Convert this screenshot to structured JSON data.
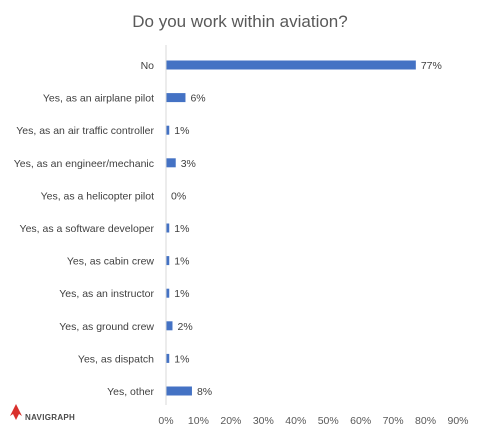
{
  "brand": {
    "name": "NAVIGRAPH",
    "accent_color": "#d9302c",
    "text_color": "#4a4a4a"
  },
  "chart_data": {
    "type": "bar",
    "orientation": "horizontal",
    "title": "Do you work within aviation?",
    "categories": [
      "No",
      "Yes, as an airplane pilot",
      "Yes, as an air traffic controller",
      "Yes, as an engineer/mechanic",
      "Yes, as a helicopter pilot",
      "Yes, as a software developer",
      "Yes, as cabin crew",
      "Yes, as an instructor",
      "Yes, as ground crew",
      "Yes, as dispatch",
      "Yes, other"
    ],
    "values": [
      77,
      6,
      1,
      3,
      0,
      1,
      1,
      1,
      2,
      1,
      8
    ],
    "value_labels": [
      "77%",
      "6%",
      "1%",
      "3%",
      "0%",
      "1%",
      "1%",
      "1%",
      "2%",
      "1%",
      "8%"
    ],
    "xlim": [
      0,
      90
    ],
    "xticks": [
      "0%",
      "10%",
      "20%",
      "30%",
      "40%",
      "50%",
      "60%",
      "70%",
      "80%",
      "90%"
    ],
    "xlabel": "",
    "ylabel": "",
    "grid": false,
    "bar_color": "#4472c4"
  }
}
